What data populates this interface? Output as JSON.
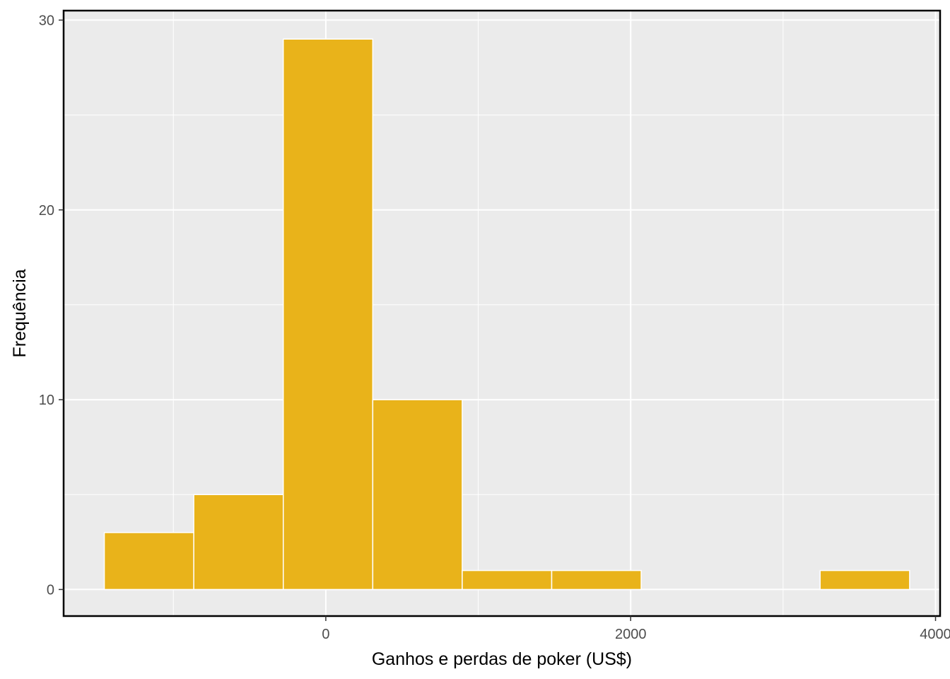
{
  "chart_data": {
    "type": "bar",
    "subtype": "histogram",
    "xlabel": "Ganhos e perdas de poker (US$)",
    "ylabel": "Frequência",
    "xlim": [
      -1720,
      4030
    ],
    "ylim": [
      -1.4,
      30.5
    ],
    "x_ticks": [
      0,
      2000,
      4000
    ],
    "y_ticks": [
      0,
      10,
      20,
      30
    ],
    "grid": true,
    "bin_width": 587,
    "bins": [
      {
        "x0": -1453,
        "x1": -866,
        "count": 3
      },
      {
        "x0": -866,
        "x1": -279,
        "count": 5
      },
      {
        "x0": -279,
        "x1": 308,
        "count": 29
      },
      {
        "x0": 308,
        "x1": 895,
        "count": 10
      },
      {
        "x0": 895,
        "x1": 1482,
        "count": 1
      },
      {
        "x0": 1482,
        "x1": 2069,
        "count": 1
      },
      {
        "x0": 2069,
        "x1": 2656,
        "count": 0
      },
      {
        "x0": 2656,
        "x1": 3243,
        "count": 0
      },
      {
        "x0": 3243,
        "x1": 3830,
        "count": 1
      }
    ],
    "colors": {
      "bar_fill": "#E9B31A",
      "bar_stroke": "#FFFFFF",
      "panel_background": "#EBEBEB",
      "grid": "#FFFFFF",
      "border": "#000000"
    }
  }
}
